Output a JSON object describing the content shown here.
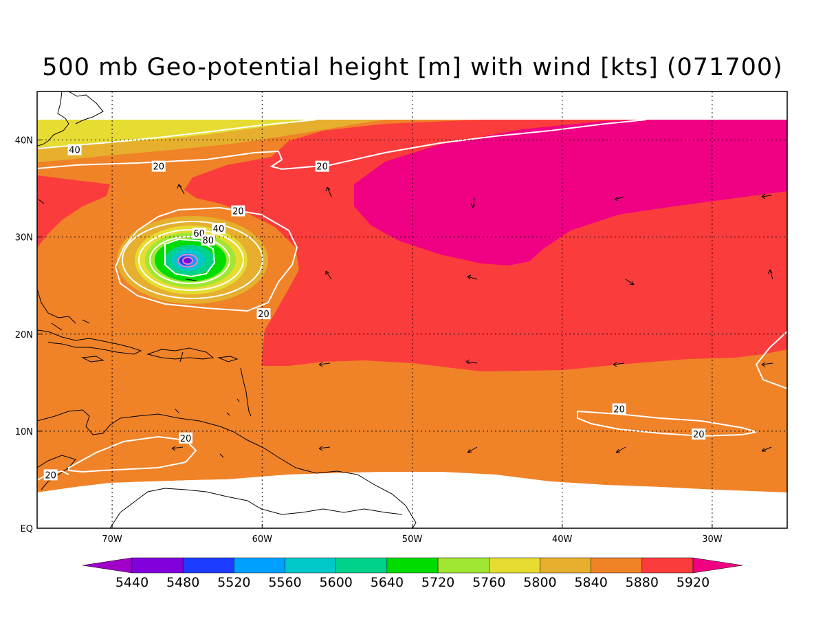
{
  "title": "500 mb Geo-potential height [m] with wind [kts] (071700)",
  "map": {
    "lon_range": [
      -75,
      -25
    ],
    "lat_range": [
      0,
      45
    ],
    "lon_ticks": [
      {
        "lon": -70,
        "label": "70W"
      },
      {
        "lon": -60,
        "label": "60W"
      },
      {
        "lon": -50,
        "label": "50W"
      },
      {
        "lon": -40,
        "label": "40W"
      },
      {
        "lon": -30,
        "label": "30W"
      }
    ],
    "lat_ticks": [
      {
        "lat": 0,
        "label": "EQ"
      },
      {
        "lat": 10,
        "label": "10N"
      },
      {
        "lat": 20,
        "label": "20N"
      },
      {
        "lat": 30,
        "label": "30N"
      },
      {
        "lat": 40,
        "label": "40N"
      }
    ],
    "wind_contour_labels": [
      {
        "text": "40",
        "lon": -72.5,
        "lat": 39.0
      },
      {
        "text": "20",
        "lon": -66.9,
        "lat": 37.3
      },
      {
        "text": "20",
        "lon": -56.0,
        "lat": 37.3
      },
      {
        "text": "20",
        "lon": -61.6,
        "lat": 32.7
      },
      {
        "text": "40",
        "lon": -62.9,
        "lat": 30.9
      },
      {
        "text": "60",
        "lon": -64.2,
        "lat": 30.4
      },
      {
        "text": "80",
        "lon": -63.6,
        "lat": 29.7
      },
      {
        "text": "20",
        "lon": -59.9,
        "lat": 22.1
      },
      {
        "text": "20",
        "lon": -36.2,
        "lat": 12.3
      },
      {
        "text": "20",
        "lon": -65.1,
        "lat": 9.3
      },
      {
        "text": "20",
        "lon": -74.1,
        "lat": 5.5
      },
      {
        "text": "20",
        "lon": -30.9,
        "lat": 9.7
      }
    ]
  },
  "colorbar": {
    "levels": [
      "5440",
      "5480",
      "5520",
      "5560",
      "5600",
      "5640",
      "5720",
      "5760",
      "5800",
      "5840",
      "5880",
      "5920"
    ],
    "colors": [
      "#a000c8",
      "#8200dc",
      "#1e3cff",
      "#00a0ff",
      "#00c8c8",
      "#00d28c",
      "#00dc00",
      "#a0e632",
      "#e6dc32",
      "#e6af2d",
      "#f08228",
      "#fa3c3c",
      "#f00082"
    ]
  }
}
